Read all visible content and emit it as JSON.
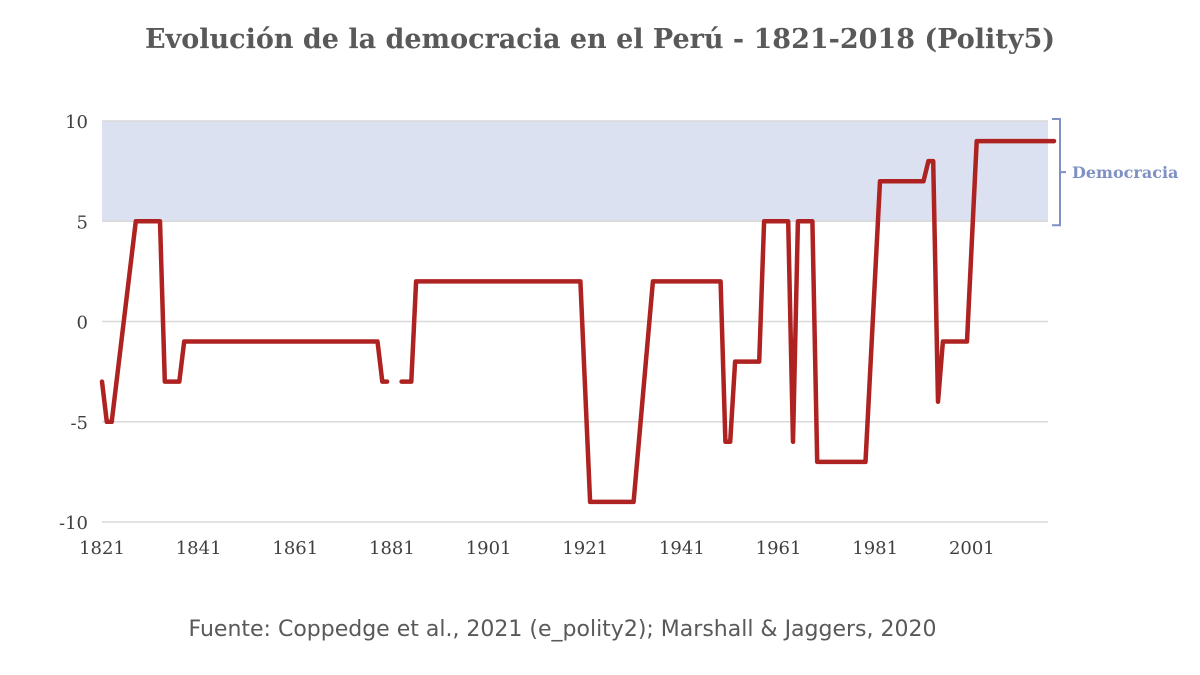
{
  "chart_data": {
    "type": "line",
    "title": "Evolución de la democracia en el Perú - 1821-2018 (Polity5)",
    "source": "Fuente: Coppedge et al., 2021 (e_polity2); Marshall & Jaggers, 2020",
    "xlabel": "",
    "ylabel": "",
    "xlim": [
      1821,
      2018
    ],
    "ylim": [
      -10,
      10
    ],
    "x_ticks": [
      1821,
      1841,
      1861,
      1881,
      1901,
      1921,
      1941,
      1961,
      1981,
      2001
    ],
    "y_ticks": [
      10,
      5,
      0,
      -5,
      -10
    ],
    "grid": true,
    "band": {
      "label": "Democracia",
      "from": 5,
      "to": 10,
      "color": "#dbe1f0"
    },
    "series": [
      {
        "color": "#ae2321",
        "segments": [
          [
            [
              1821,
              -3
            ],
            [
              1822,
              -5
            ],
            [
              1823,
              -5
            ],
            [
              1828,
              5
            ],
            [
              1833,
              5
            ],
            [
              1834,
              -3
            ],
            [
              1837,
              -3
            ],
            [
              1838,
              -1
            ],
            [
              1878,
              -1
            ],
            [
              1879,
              -3
            ],
            [
              1880,
              -3
            ]
          ],
          [
            [
              1883,
              -3
            ],
            [
              1885,
              -3
            ],
            [
              1886,
              2
            ],
            [
              1920,
              2
            ],
            [
              1922,
              -9
            ],
            [
              1931,
              -9
            ],
            [
              1935,
              2
            ],
            [
              1949,
              2
            ],
            [
              1950,
              -6
            ],
            [
              1951,
              -6
            ],
            [
              1952,
              -2
            ],
            [
              1957,
              -2
            ],
            [
              1958,
              5
            ],
            [
              1963,
              5
            ],
            [
              1964,
              -6
            ],
            [
              1965,
              5
            ],
            [
              1968,
              5
            ],
            [
              1969,
              -7
            ],
            [
              1979,
              -7
            ],
            [
              1982,
              7
            ],
            [
              1991,
              7
            ],
            [
              1992,
              8
            ],
            [
              1993,
              8
            ],
            [
              1994,
              -4
            ],
            [
              1995,
              -1
            ],
            [
              2000,
              -1
            ],
            [
              2002,
              9
            ],
            [
              2018,
              9
            ]
          ]
        ]
      }
    ]
  }
}
